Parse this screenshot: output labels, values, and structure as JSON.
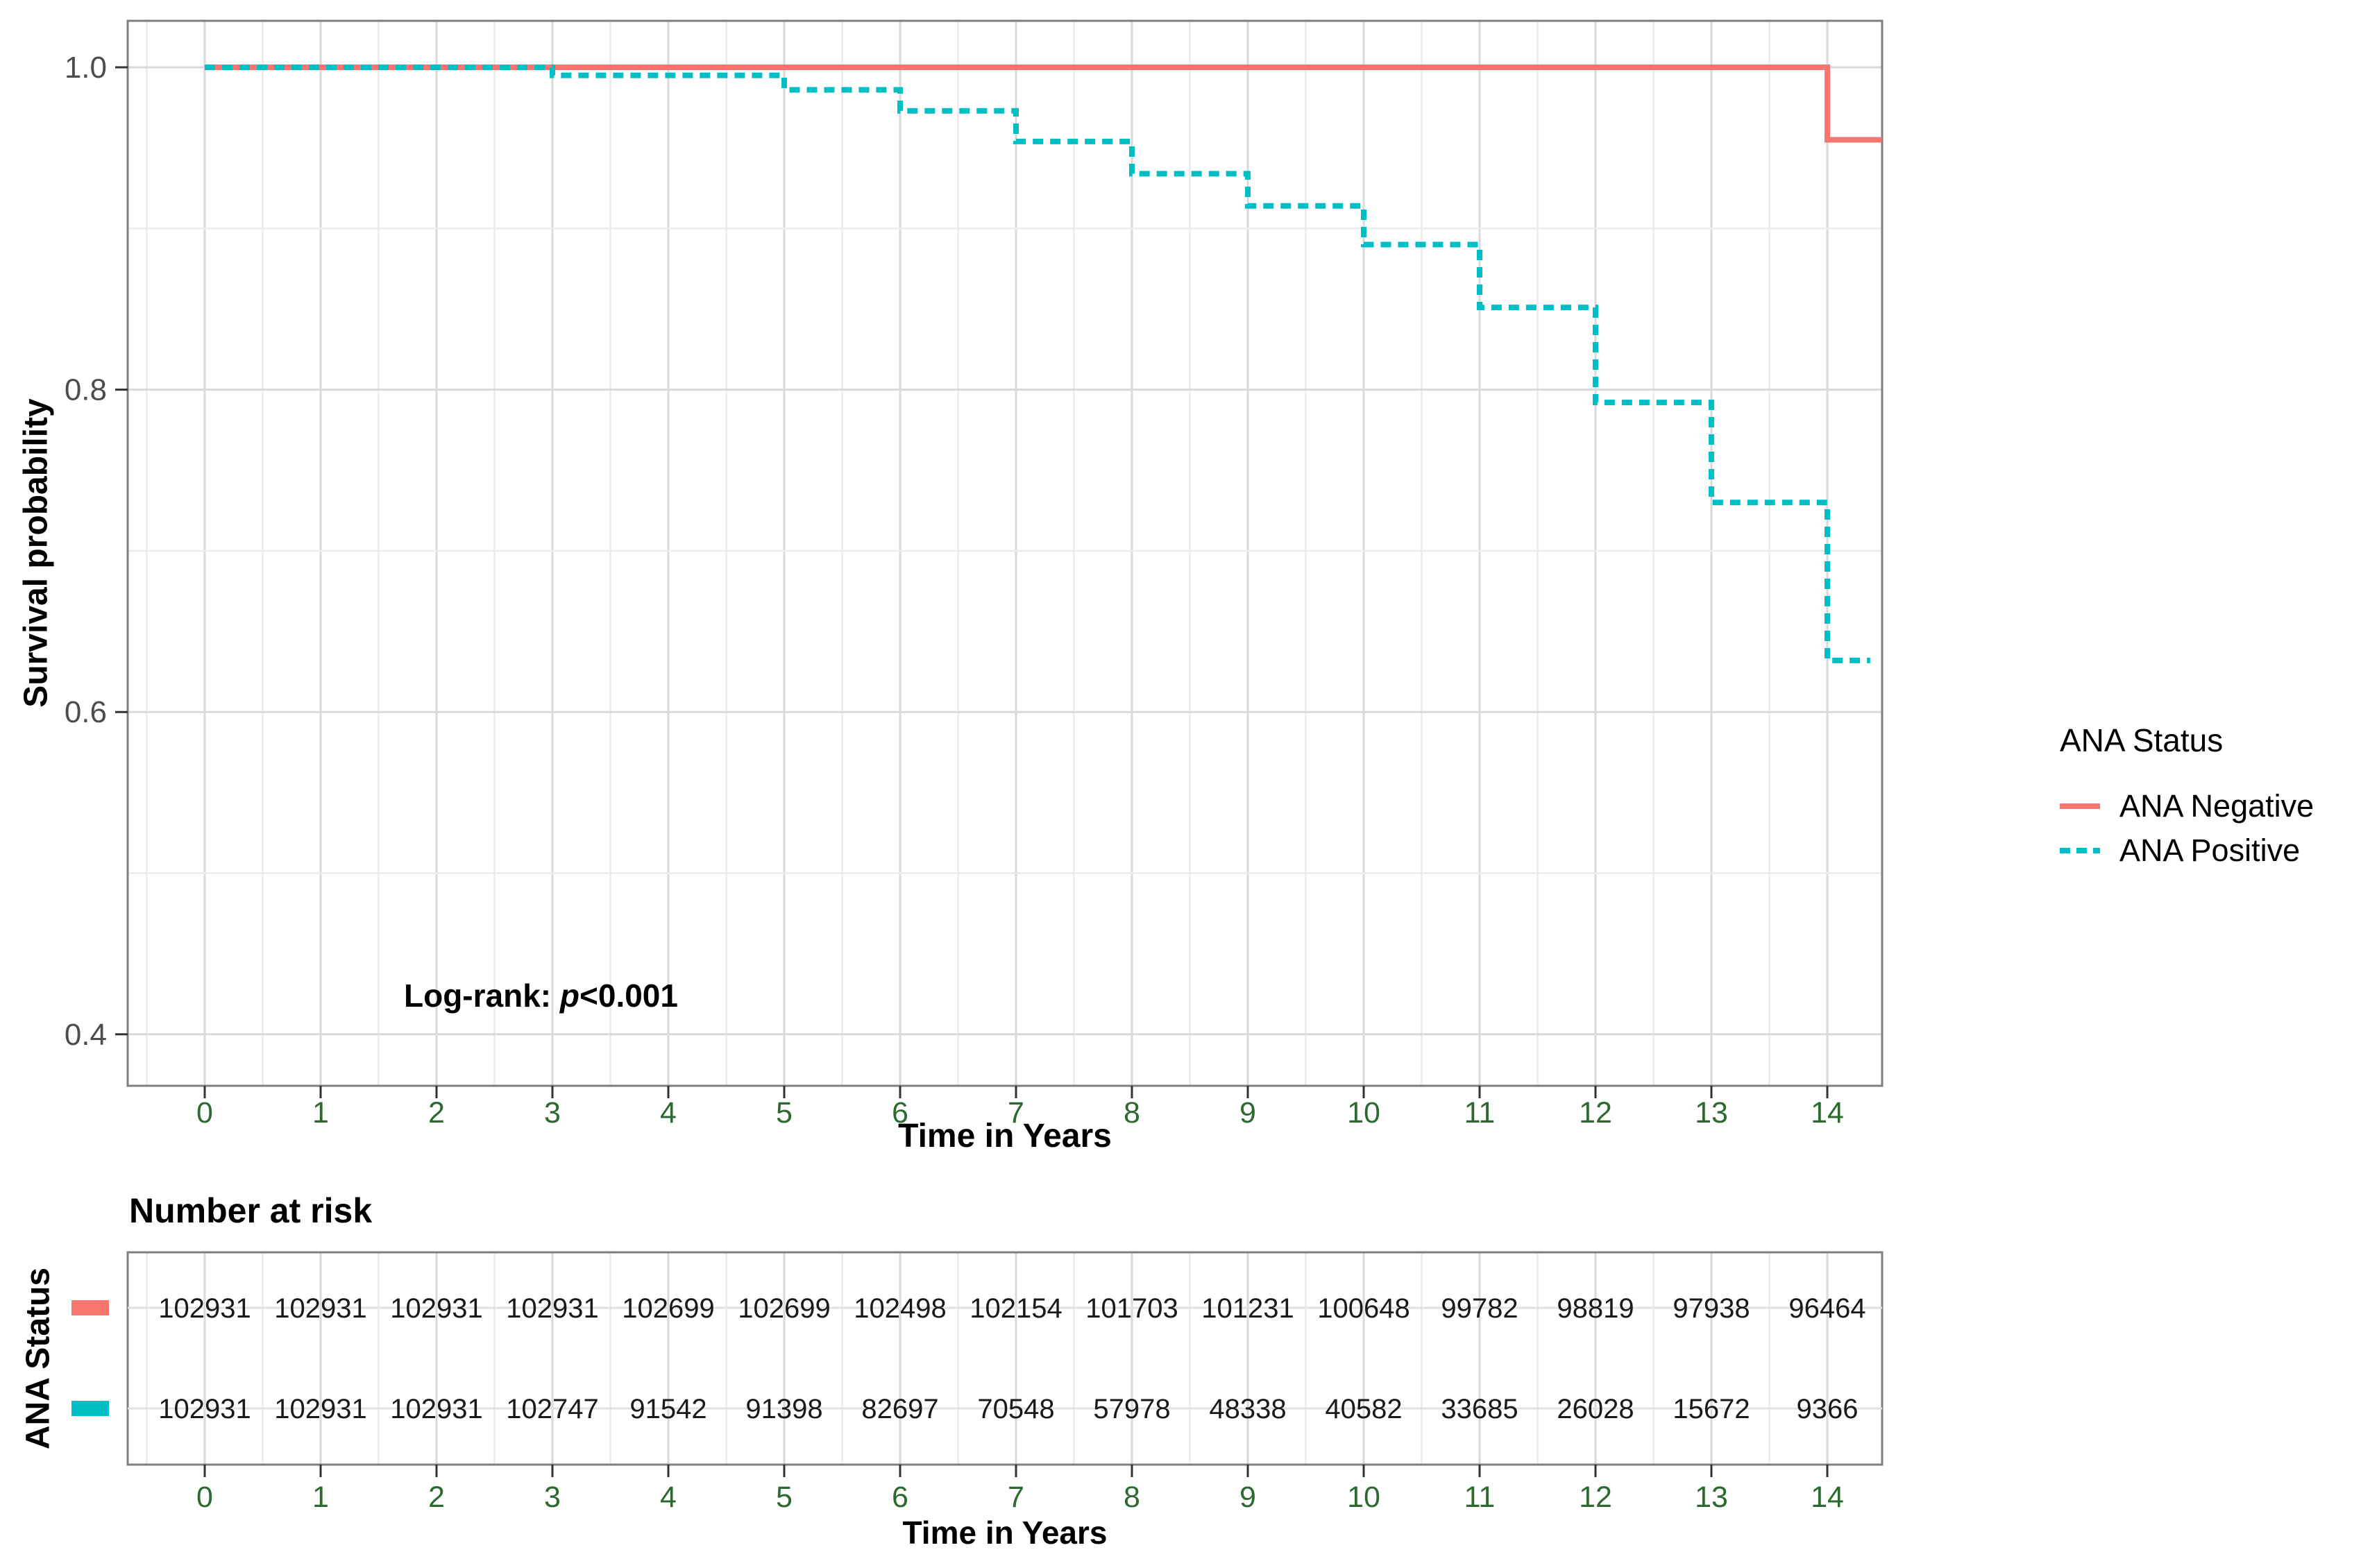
{
  "chart_data": {
    "type": "line",
    "subtype": "kaplan-meier-step",
    "title": "",
    "xlabel": "Time in Years",
    "ylabel": "Survival probability",
    "x_ticks": [
      0,
      1,
      2,
      3,
      4,
      5,
      6,
      7,
      8,
      9,
      10,
      11,
      12,
      13,
      14
    ],
    "y_ticks": [
      0.4,
      0.6,
      0.8,
      1.0
    ],
    "xlim": [
      -0.66,
      14.47
    ],
    "ylim": [
      0.368,
      1.029
    ],
    "grid": "major and minor, light gray on white panel",
    "legend_position": "right",
    "legend_title": "ANA Status",
    "annotation": {
      "prefix": "Log-rank: ",
      "p": "p",
      "suffix": "<0.001"
    },
    "series": [
      {
        "name": "ANA Negative",
        "color": "#F8766D",
        "line_style": "solid",
        "x": [
          0,
          14,
          14.47
        ],
        "y": [
          1.0,
          0.955,
          0.955
        ]
      },
      {
        "name": "ANA Positive",
        "color": "#00BFC4",
        "line_style": "dashed",
        "x": [
          0,
          3,
          5,
          6,
          7,
          8,
          9,
          10,
          11,
          12,
          13,
          14,
          14.37
        ],
        "y": [
          1.0,
          0.995,
          0.986,
          0.973,
          0.954,
          0.934,
          0.914,
          0.89,
          0.851,
          0.792,
          0.73,
          0.632,
          0.632
        ]
      }
    ],
    "risk_table": {
      "title": "Number at risk",
      "ylabel": "ANA Status",
      "xlabel": "Time in Years",
      "times": [
        0,
        1,
        2,
        3,
        4,
        5,
        6,
        7,
        8,
        9,
        10,
        11,
        12,
        13,
        14
      ],
      "rows": [
        {
          "name": "ANA Negative",
          "color": "#F8766D",
          "values": [
            102931,
            102931,
            102931,
            102931,
            102699,
            102699,
            102498,
            102154,
            101703,
            101231,
            100648,
            99782,
            98819,
            97938,
            96464
          ]
        },
        {
          "name": "ANA Positive",
          "color": "#00BFC4",
          "values": [
            102931,
            102931,
            102931,
            102747,
            91542,
            91398,
            82697,
            70548,
            57978,
            48338,
            40582,
            33685,
            26028,
            15672,
            9366
          ]
        }
      ]
    },
    "colors": {
      "axis_text_x": "#2d6a2f",
      "axis_text_y": "#4d4d4d",
      "risk_value_text": "#1a1a1a",
      "grid_major": "#d9d9d9",
      "grid_minor": "#ececec",
      "panel_border": "#7f7f7f",
      "tick_mark": "#333333",
      "text": "#000000"
    }
  }
}
